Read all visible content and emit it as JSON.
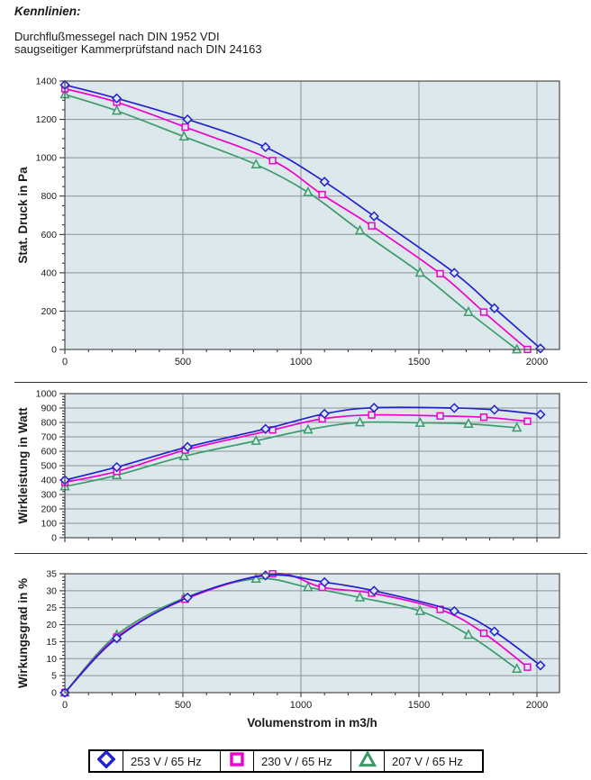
{
  "header": {
    "title": "Kennlinien:",
    "subtitle_line1": "Durchflußmessegel nach DIN 1952 VDI",
    "subtitle_line2": "saugseitiger Kammerprüfstand nach DIN 24163"
  },
  "colors": {
    "series_253v": "#2121cd",
    "series_230v": "#ef00cf",
    "series_207v": "#3b9b6b",
    "plot_bg": "#dde8ec",
    "grid": "#8a9298",
    "plot_border": "#4d4d4d",
    "tick_text": "#1a1a1a"
  },
  "x_axis_title": "Volumenstrom in m3/h",
  "legend": {
    "items": [
      {
        "label": "253 V / 65 Hz",
        "marker": "diamond",
        "color_key": "series_253v"
      },
      {
        "label": "230 V / 65 Hz",
        "marker": "square",
        "color_key": "series_230v"
      },
      {
        "label": "207 V / 65 Hz",
        "marker": "triangle",
        "color_key": "series_207v"
      }
    ]
  },
  "chart_data": [
    {
      "type": "line",
      "title": "",
      "ylabel": "Stat. Druck in Pa",
      "ylim": [
        0,
        1400
      ],
      "ytick_step": 200,
      "yminor_step": 50,
      "xlim": [
        0,
        2095
      ],
      "x_ticks": [
        0,
        500,
        1000,
        1500,
        2000
      ],
      "x_minor_step": 100,
      "show_x_tick_labels": true,
      "grid": true,
      "series": [
        {
          "name": "253 V / 65 Hz",
          "marker": "diamond",
          "color_key": "series_253v",
          "x": [
            0,
            220,
            520,
            850,
            1100,
            1310,
            1650,
            1820,
            2015
          ],
          "y": [
            1380,
            1310,
            1200,
            1055,
            875,
            695,
            400,
            215,
            5
          ]
        },
        {
          "name": "230 V / 65 Hz",
          "marker": "square",
          "color_key": "series_230v",
          "x": [
            0,
            220,
            510,
            880,
            1090,
            1300,
            1590,
            1775,
            1960
          ],
          "y": [
            1360,
            1290,
            1160,
            985,
            808,
            645,
            395,
            195,
            0
          ]
        },
        {
          "name": "207 V / 65 Hz",
          "marker": "triangle",
          "color_key": "series_207v",
          "x": [
            0,
            220,
            505,
            810,
            1030,
            1250,
            1505,
            1710,
            1915
          ],
          "y": [
            1330,
            1245,
            1110,
            965,
            820,
            620,
            400,
            195,
            0
          ]
        }
      ]
    },
    {
      "type": "line",
      "title": "",
      "ylabel": "Wirkleistung in Watt",
      "ylim": [
        0,
        1000
      ],
      "ytick_step": 100,
      "yminor_step": 20,
      "xlim": [
        0,
        2095
      ],
      "x_ticks": [
        0,
        500,
        1000,
        1500,
        2000
      ],
      "x_minor_step": 100,
      "show_x_tick_labels": false,
      "grid": true,
      "series": [
        {
          "name": "253 V / 65 Hz",
          "marker": "diamond",
          "color_key": "series_253v",
          "x": [
            0,
            220,
            520,
            850,
            1100,
            1310,
            1650,
            1820,
            2015
          ],
          "y": [
            400,
            490,
            630,
            755,
            860,
            902,
            900,
            888,
            855
          ]
        },
        {
          "name": "230 V / 65 Hz",
          "marker": "square",
          "color_key": "series_230v",
          "x": [
            0,
            220,
            510,
            880,
            1090,
            1300,
            1590,
            1775,
            1960
          ],
          "y": [
            385,
            460,
            608,
            748,
            825,
            852,
            845,
            836,
            808
          ]
        },
        {
          "name": "207 V / 65 Hz",
          "marker": "triangle",
          "color_key": "series_207v",
          "x": [
            0,
            220,
            505,
            810,
            1030,
            1250,
            1505,
            1710,
            1915
          ],
          "y": [
            355,
            433,
            565,
            672,
            750,
            800,
            797,
            790,
            763
          ]
        }
      ]
    },
    {
      "type": "line",
      "title": "",
      "ylabel": "Wirkungsgrad in %",
      "ylim": [
        0,
        35
      ],
      "ytick_step": 5,
      "yminor_step": 1,
      "xlim": [
        0,
        2095
      ],
      "x_ticks": [
        0,
        500,
        1000,
        1500,
        2000
      ],
      "x_minor_step": 100,
      "show_x_tick_labels": true,
      "grid": true,
      "series": [
        {
          "name": "253 V / 65 Hz",
          "marker": "diamond",
          "color_key": "series_253v",
          "x": [
            0,
            220,
            520,
            850,
            1100,
            1310,
            1650,
            1820,
            2015
          ],
          "y": [
            0,
            16,
            28,
            34.5,
            32.5,
            30,
            24,
            18,
            8
          ]
        },
        {
          "name": "230 V / 65 Hz",
          "marker": "square",
          "color_key": "series_230v",
          "x": [
            0,
            220,
            510,
            880,
            1090,
            1300,
            1590,
            1775,
            1960
          ],
          "y": [
            0,
            16.3,
            27.5,
            35,
            31,
            29.3,
            24.5,
            17.5,
            7.5
          ]
        },
        {
          "name": "207 V / 65 Hz",
          "marker": "triangle",
          "color_key": "series_207v",
          "x": [
            0,
            220,
            505,
            810,
            1030,
            1250,
            1505,
            1710,
            1915
          ],
          "y": [
            0,
            17,
            27.8,
            33.5,
            31,
            28,
            24,
            17,
            7
          ]
        }
      ]
    }
  ]
}
